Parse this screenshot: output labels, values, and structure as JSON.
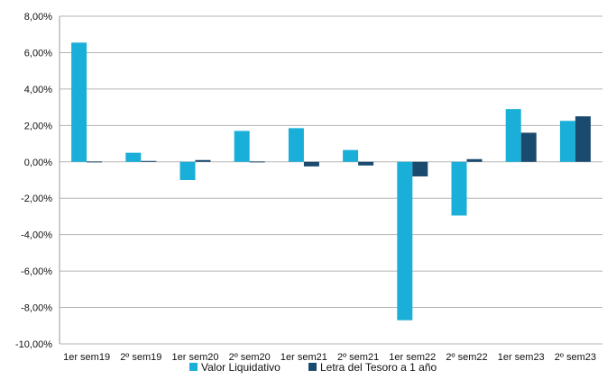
{
  "chart_data": {
    "type": "bar",
    "categories": [
      "1er sem19",
      "2º sem19",
      "1er sem20",
      "2º sem20",
      "1er sem21",
      "2º sem21",
      "1er sem22",
      "2º sem22",
      "1er sem23",
      "2º sem23"
    ],
    "series": [
      {
        "name": "Valor Liquidativo",
        "color": "#1aafd8",
        "values": [
          6.55,
          0.5,
          -1.0,
          1.7,
          1.85,
          0.65,
          -8.7,
          -2.95,
          2.9,
          2.25
        ]
      },
      {
        "name": "Letra del Tesoro a 1 año",
        "color": "#1a4a6e",
        "values": [
          0.02,
          0.05,
          0.1,
          0.02,
          -0.25,
          -0.2,
          -0.8,
          0.15,
          1.6,
          2.5
        ]
      }
    ],
    "y_ticks": [
      "8,00%",
      "6,00%",
      "4,00%",
      "2,00%",
      "0,00%",
      "-2,00%",
      "-4,00%",
      "-6,00%",
      "-8,00%",
      "-10,00%"
    ],
    "ylim": [
      -10,
      8
    ],
    "grid": true,
    "legend_position": "bottom"
  }
}
